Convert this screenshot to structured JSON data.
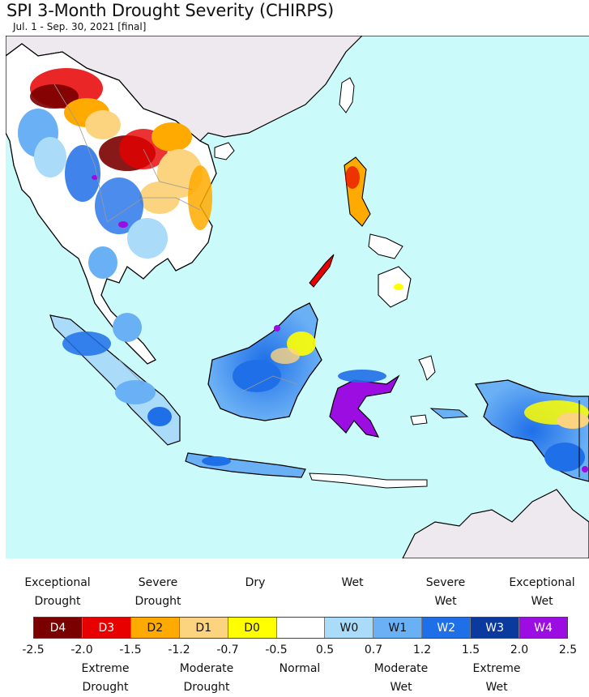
{
  "header": {
    "title": "SPI 3-Month Drought Severity (CHIRPS)",
    "subtitle": "Jul. 1 - Sep. 30, 2021 [final]"
  },
  "map": {
    "ocean_color": "#cafbfa",
    "land_color": "#ffffff",
    "outside_land_color": "#eee9ee",
    "border_color": "#000000",
    "internal_border_color": "#999999"
  },
  "legend": {
    "categories": [
      {
        "code": "D4",
        "color": "#7a0000",
        "text_color": "#ffffff"
      },
      {
        "code": "D3",
        "color": "#e60000",
        "text_color": "#ffffff"
      },
      {
        "code": "D2",
        "color": "#ffaa00",
        "text_color": "#111111"
      },
      {
        "code": "D1",
        "color": "#fcd37f",
        "text_color": "#111111"
      },
      {
        "code": "D0",
        "color": "#ffff00",
        "text_color": "#111111"
      },
      {
        "code": "",
        "color": "#ffffff",
        "text_color": "#111111"
      },
      {
        "code": "W0",
        "color": "#aadcfa",
        "text_color": "#111111"
      },
      {
        "code": "W1",
        "color": "#6ab0f5",
        "text_color": "#111111"
      },
      {
        "code": "W2",
        "color": "#1f6fe8",
        "text_color": "#ffffff"
      },
      {
        "code": "W3",
        "color": "#0a3a9e",
        "text_color": "#ffffff"
      },
      {
        "code": "W4",
        "color": "#9b0de0",
        "text_color": "#ffffff"
      }
    ],
    "ticks": [
      "-2.5",
      "-2.0",
      "-1.5",
      "-1.2",
      "-0.7",
      "-0.5",
      "0.5",
      "0.7",
      "1.2",
      "1.5",
      "2.0",
      "2.5"
    ],
    "labels_top": [
      {
        "line1": "Exceptional",
        "line2": "Drought"
      },
      {
        "line1": "Severe",
        "line2": "Drought"
      },
      {
        "line1": "",
        "line2": "Dry"
      },
      {
        "line1": "",
        "line2": "Wet"
      },
      {
        "line1": "Severe",
        "line2": "Wet"
      },
      {
        "line1": "Exceptional",
        "line2": "Wet"
      }
    ],
    "labels_bottom": [
      {
        "line1": "Extreme",
        "line2": "Drought"
      },
      {
        "line1": "Moderate",
        "line2": "Drought"
      },
      {
        "line1": "Normal",
        "line2": ""
      },
      {
        "line1": "Moderate",
        "line2": "Wet"
      },
      {
        "line1": "Extreme",
        "line2": "Wet"
      }
    ]
  }
}
